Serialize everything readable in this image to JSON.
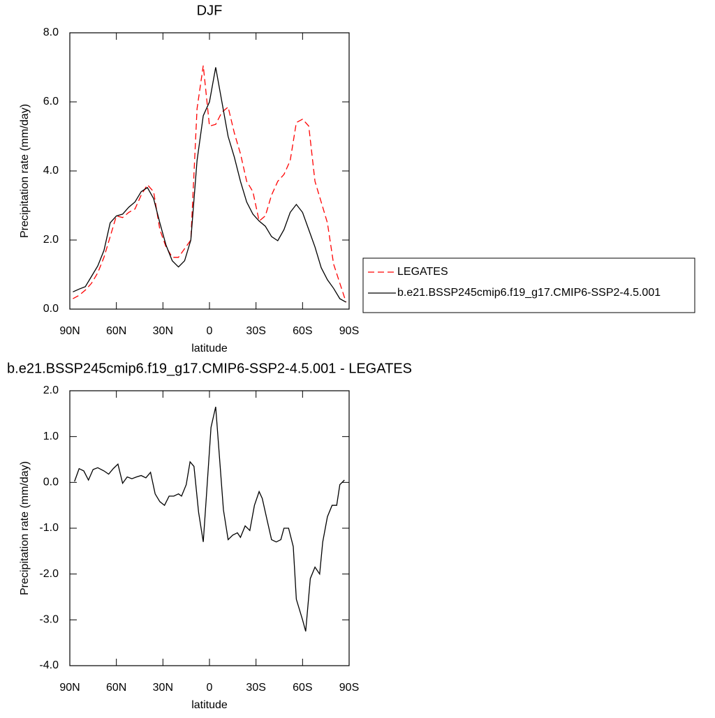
{
  "chart_data": [
    {
      "type": "line",
      "title": "DJF",
      "xlabel": "latitude",
      "ylabel": "Precipitation rate (mm/day)",
      "x": [
        88,
        84,
        80,
        76,
        72,
        68,
        64,
        60,
        56,
        52,
        48,
        44,
        40,
        36,
        32,
        28,
        24,
        20,
        16,
        12,
        8,
        4,
        0,
        -4,
        -8,
        -12,
        -16,
        -20,
        -24,
        -28,
        -32,
        -36,
        -40,
        -44,
        -48,
        -52,
        -56,
        -60,
        -64,
        -68,
        -72,
        -76,
        -80,
        -84,
        -88
      ],
      "series": [
        {
          "name": "LEGATES",
          "color": "#ff0000",
          "linestyle": "dashed",
          "values": [
            0.3,
            0.4,
            0.55,
            0.75,
            1.05,
            1.5,
            2.1,
            2.7,
            2.65,
            2.8,
            2.9,
            3.3,
            3.6,
            3.4,
            2.3,
            1.8,
            1.5,
            1.5,
            1.75,
            2.0,
            5.8,
            7.05,
            5.3,
            5.35,
            5.7,
            5.85,
            5.1,
            4.5,
            3.7,
            3.4,
            2.55,
            2.7,
            3.3,
            3.7,
            3.9,
            4.3,
            5.4,
            5.5,
            5.3,
            3.7,
            3.1,
            2.5,
            1.3,
            0.75,
            0.2
          ]
        },
        {
          "name": "b.e21.BSSP245cmip6.f19_g17.CMIP6-SSP2-4.5.001",
          "color": "#000000",
          "linestyle": "solid",
          "values": [
            0.5,
            0.58,
            0.65,
            0.95,
            1.25,
            1.7,
            2.5,
            2.7,
            2.75,
            2.95,
            3.1,
            3.4,
            3.52,
            3.2,
            2.5,
            1.85,
            1.4,
            1.22,
            1.4,
            2.0,
            4.3,
            5.6,
            6.0,
            7.0,
            6.0,
            5.0,
            4.4,
            3.7,
            3.1,
            2.75,
            2.55,
            2.4,
            2.1,
            1.98,
            2.3,
            2.8,
            3.03,
            2.8,
            2.3,
            1.8,
            1.2,
            0.85,
            0.6,
            0.3,
            0.2
          ]
        }
      ],
      "xlim": [
        90,
        -90
      ],
      "xticks": [
        {
          "value": 90,
          "label": "90N"
        },
        {
          "value": 60,
          "label": "60N"
        },
        {
          "value": 30,
          "label": "30N"
        },
        0,
        {
          "value": -30,
          "label": "30S"
        },
        {
          "value": -60,
          "label": "60S"
        },
        {
          "value": -90,
          "label": "90S"
        }
      ],
      "ylim": [
        0,
        8
      ],
      "yticks": [
        {
          "value": 0,
          "label": "0.0"
        },
        {
          "value": 2,
          "label": "2.0"
        },
        {
          "value": 4,
          "label": "4.0"
        },
        {
          "value": 6,
          "label": "6.0"
        },
        {
          "value": 8,
          "label": "8.0"
        }
      ],
      "legend": "right"
    },
    {
      "type": "line",
      "title": "b.e21.BSSP245cmip6.f19_g17.CMIP6-SSP2-4.5.001 - LEGATES",
      "xlabel": "latitude",
      "ylabel": "Precipitation rate (mm/day)",
      "x": [
        87,
        84,
        81,
        78,
        75,
        72,
        68,
        65,
        62,
        59,
        56,
        53,
        50,
        47,
        44,
        41,
        38,
        35,
        32,
        29,
        26,
        23,
        20,
        18,
        15,
        12.5,
        10,
        7,
        4,
        2,
        -1,
        -4,
        -9,
        -12,
        -15,
        -18,
        -20,
        -23,
        -26,
        -29,
        -32,
        -34,
        -37,
        -40,
        -43,
        -46,
        -48,
        -51,
        -54,
        -56,
        -60,
        -62,
        -65,
        -68,
        -71,
        -73,
        -76,
        -79,
        -82,
        -84,
        -87
      ],
      "values": [
        0.02,
        0.3,
        0.25,
        0.05,
        0.28,
        0.32,
        0.25,
        0.18,
        0.3,
        0.4,
        -0.02,
        0.12,
        0.08,
        0.12,
        0.15,
        0.1,
        0.22,
        -0.25,
        -0.42,
        -0.5,
        -0.3,
        -0.3,
        -0.25,
        -0.3,
        -0.05,
        0.45,
        0.35,
        -0.65,
        -1.3,
        -0.3,
        1.2,
        1.65,
        -0.6,
        -1.25,
        -1.15,
        -1.1,
        -1.2,
        -0.95,
        -1.05,
        -0.5,
        -0.2,
        -0.35,
        -0.8,
        -1.25,
        -1.3,
        -1.25,
        -1.0,
        -1.0,
        -1.4,
        -2.55,
        -3.0,
        -3.25,
        -2.1,
        -1.85,
        -2.0,
        -1.3,
        -0.75,
        -0.5,
        -0.5,
        -0.05,
        0.05
      ],
      "color": "#000000",
      "xlim": [
        90,
        -90
      ],
      "xticks": [
        {
          "value": 90,
          "label": "90N"
        },
        {
          "value": 60,
          "label": "60N"
        },
        {
          "value": 30,
          "label": "30N"
        },
        0,
        {
          "value": -30,
          "label": "30S"
        },
        {
          "value": -60,
          "label": "60S"
        },
        {
          "value": -90,
          "label": "90S"
        }
      ],
      "ylim": [
        -4,
        2
      ],
      "yticks": [
        {
          "value": -4,
          "label": "-4.0"
        },
        {
          "value": -3,
          "label": "-3.0"
        },
        {
          "value": -2,
          "label": "-2.0"
        },
        {
          "value": -1,
          "label": "-1.0"
        },
        {
          "value": 0,
          "label": "0.0"
        },
        {
          "value": 1,
          "label": "1.0"
        },
        {
          "value": 2,
          "label": "2.0"
        }
      ]
    }
  ]
}
